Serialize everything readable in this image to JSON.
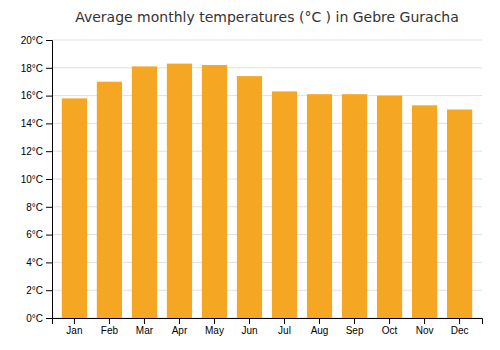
{
  "chart_data": {
    "type": "bar",
    "title": "Average monthly temperatures (°C ) in Gebre Guracha",
    "categories": [
      "Jan",
      "Feb",
      "Mar",
      "Apr",
      "May",
      "Jun",
      "Jul",
      "Aug",
      "Sep",
      "Oct",
      "Nov",
      "Dec"
    ],
    "values": [
      15.8,
      17.0,
      18.1,
      18.3,
      18.2,
      17.4,
      16.3,
      16.1,
      16.1,
      16.0,
      15.3,
      15.0
    ],
    "color": "#F5A623",
    "ylim": [
      0,
      20
    ],
    "yticks": [
      {
        "value": 0,
        "label": "0°C"
      },
      {
        "value": 2,
        "label": "2°C"
      },
      {
        "value": 4,
        "label": "4°C"
      },
      {
        "value": 6,
        "label": "6°C"
      },
      {
        "value": 8,
        "label": "8°C"
      },
      {
        "value": 10,
        "label": "10°C"
      },
      {
        "value": 12,
        "label": "12°C"
      },
      {
        "value": 14,
        "label": "14°C"
      },
      {
        "value": 16,
        "label": "16°C"
      },
      {
        "value": 18,
        "label": "18°C"
      },
      {
        "value": 20,
        "label": "20°C"
      }
    ],
    "grid": true
  }
}
